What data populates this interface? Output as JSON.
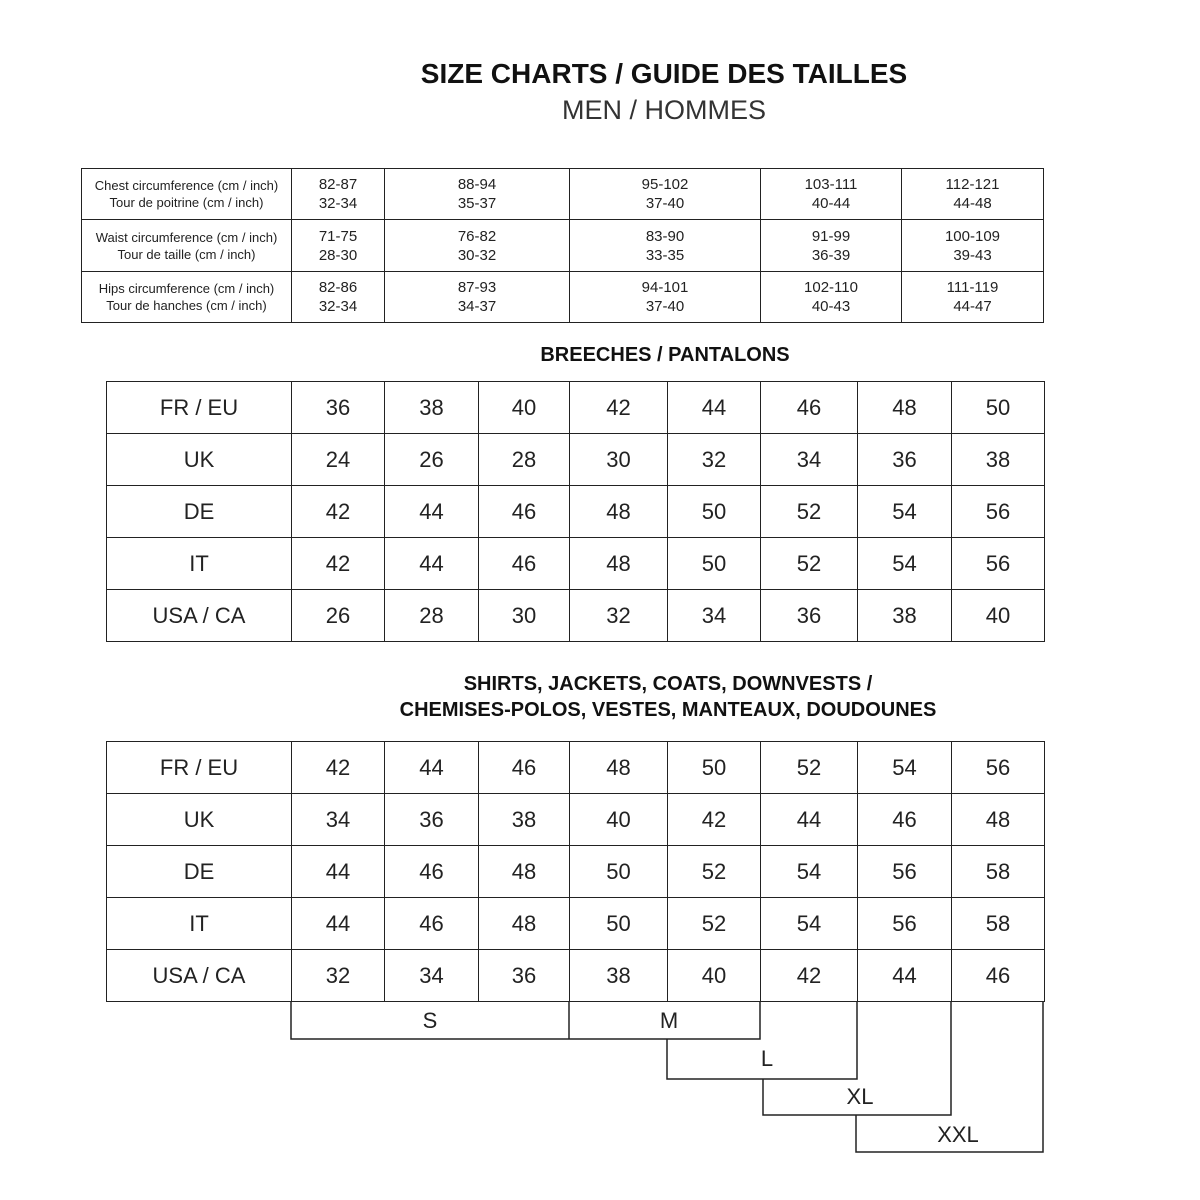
{
  "header": {
    "title": "SIZE CHARTS / GUIDE DES TAILLES",
    "subtitle": "MEN / HOMMES"
  },
  "measurements": {
    "rows": [
      {
        "label": [
          "Chest circumference (cm / inch)",
          "Tour de poitrine (cm / inch)"
        ],
        "values": [
          [
            "82-87",
            "32-34"
          ],
          [
            "88-94",
            "35-37"
          ],
          [
            "95-102",
            "37-40"
          ],
          [
            "103-111",
            "40-44"
          ],
          [
            "112-121",
            "44-48"
          ]
        ]
      },
      {
        "label": [
          "Waist circumference (cm / inch)",
          "Tour de taille (cm / inch)"
        ],
        "values": [
          [
            "71-75",
            "28-30"
          ],
          [
            "76-82",
            "30-32"
          ],
          [
            "83-90",
            "33-35"
          ],
          [
            "91-99",
            "36-39"
          ],
          [
            "100-109",
            "39-43"
          ]
        ]
      },
      {
        "label": [
          "Hips circumference (cm / inch)",
          "Tour de hanches (cm / inch)"
        ],
        "values": [
          [
            "82-86",
            "32-34"
          ],
          [
            "87-93",
            "34-37"
          ],
          [
            "94-101",
            "37-40"
          ],
          [
            "102-110",
            "40-43"
          ],
          [
            "111-119",
            "44-47"
          ]
        ]
      }
    ]
  },
  "breeches": {
    "title": "BREECHES / PANTALONS",
    "rows": [
      {
        "label": "FR / EU",
        "values": [
          "36",
          "38",
          "40",
          "42",
          "44",
          "46",
          "48",
          "50"
        ]
      },
      {
        "label": "UK",
        "values": [
          "24",
          "26",
          "28",
          "30",
          "32",
          "34",
          "36",
          "38"
        ]
      },
      {
        "label": "DE",
        "values": [
          "42",
          "44",
          "46",
          "48",
          "50",
          "52",
          "54",
          "56"
        ]
      },
      {
        "label": "IT",
        "values": [
          "42",
          "44",
          "46",
          "48",
          "50",
          "52",
          "54",
          "56"
        ]
      },
      {
        "label": "USA / CA",
        "values": [
          "26",
          "28",
          "30",
          "32",
          "34",
          "36",
          "38",
          "40"
        ]
      }
    ]
  },
  "shirts": {
    "title_line1": "SHIRTS, JACKETS, COATS, DOWNVESTS /",
    "title_line2": "CHEMISES-POLOS, VESTES, MANTEAUX, DOUDOUNES",
    "rows": [
      {
        "label": "FR / EU",
        "values": [
          "42",
          "44",
          "46",
          "48",
          "50",
          "52",
          "54",
          "56"
        ]
      },
      {
        "label": "UK",
        "values": [
          "34",
          "36",
          "38",
          "40",
          "42",
          "44",
          "46",
          "48"
        ]
      },
      {
        "label": "DE",
        "values": [
          "44",
          "46",
          "48",
          "50",
          "52",
          "54",
          "56",
          "58"
        ]
      },
      {
        "label": "IT",
        "values": [
          "44",
          "46",
          "48",
          "50",
          "52",
          "54",
          "56",
          "58"
        ]
      },
      {
        "label": "USA / CA",
        "values": [
          "32",
          "34",
          "36",
          "38",
          "40",
          "42",
          "44",
          "46"
        ]
      }
    ],
    "letter_sizes": [
      "S",
      "M",
      "L",
      "XL",
      "XXL"
    ]
  }
}
